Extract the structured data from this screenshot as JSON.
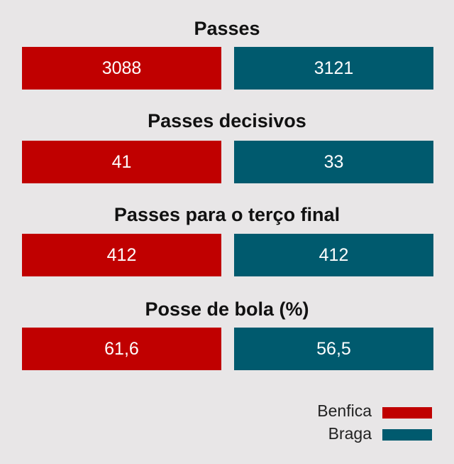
{
  "chart_data": {
    "type": "bar",
    "colors": {
      "Benfica": "#c00000",
      "Braga": "#005a6e"
    },
    "legend_placement": "bottom-right",
    "series": [
      {
        "name": "Benfica",
        "values": [
          3088,
          41,
          412,
          61.6
        ]
      },
      {
        "name": "Braga",
        "values": [
          3121,
          33,
          412,
          56.5
        ]
      }
    ],
    "categories": [
      "Passes",
      "Passes decisivos",
      "Passes para o terço final",
      "Posse de bola (%)"
    ],
    "display_values": [
      [
        "3088",
        "3121"
      ],
      [
        "41",
        "33"
      ],
      [
        "412",
        "412"
      ],
      [
        "61,6",
        "56,5"
      ]
    ]
  }
}
